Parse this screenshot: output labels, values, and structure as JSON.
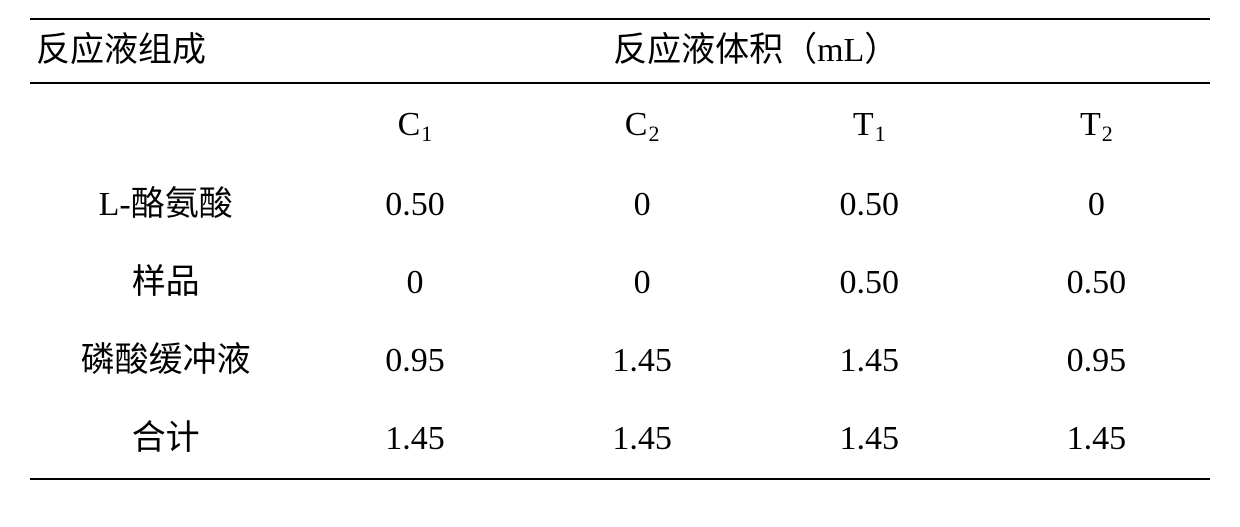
{
  "table": {
    "header_left": "反应液组成",
    "header_right": "反应液体积（mL）",
    "sub_headers": [
      "C",
      "C",
      "T",
      "T"
    ],
    "sub_header_subs": [
      "1",
      "2",
      "1",
      "2"
    ],
    "rows": [
      {
        "label": "L-酪氨酸",
        "values": [
          "0.50",
          "0",
          "0.50",
          "0"
        ]
      },
      {
        "label": "样品",
        "values": [
          "0",
          "0",
          "0.50",
          "0.50"
        ]
      },
      {
        "label": "磷酸缓冲液",
        "values": [
          "0.95",
          "1.45",
          "1.45",
          "0.95"
        ]
      },
      {
        "label": "合计",
        "values": [
          "1.45",
          "1.45",
          "1.45",
          "1.45"
        ]
      }
    ],
    "colors": {
      "rule": "#000000",
      "text": "#000000",
      "background": "#ffffff"
    },
    "font": {
      "size_pt": 26,
      "sub_size_pt": 16,
      "family": "SimSun / Times"
    }
  }
}
